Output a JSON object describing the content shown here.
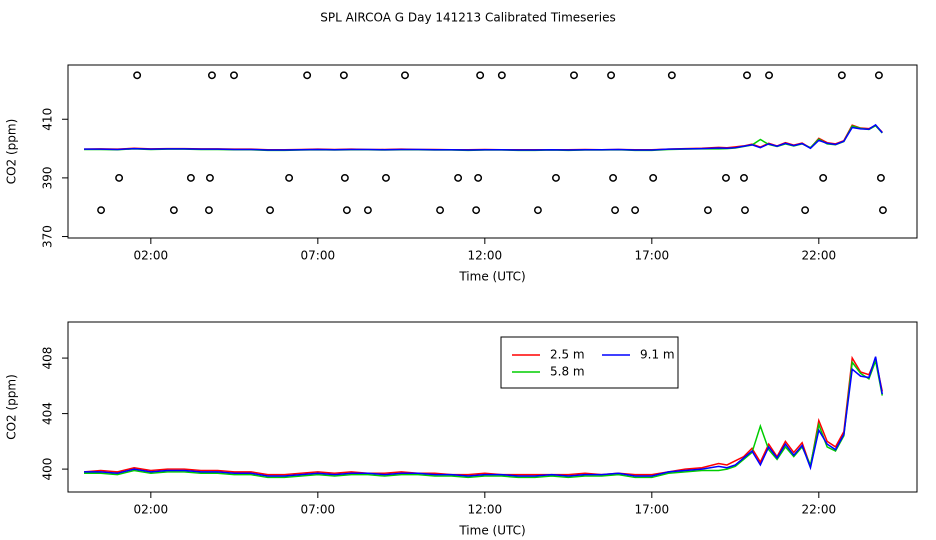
{
  "title": "SPL AIRCOA G  Day 141213  Calibrated Timeseries",
  "chart_data": [
    {
      "type": "line",
      "xlabel": "Time (UTC)",
      "ylabel": "CO2 (ppm)",
      "xlim": [
        -0.48,
        24.94
      ],
      "ylim": [
        369.5,
        428.5
      ],
      "xticks": [
        {
          "value": 2,
          "label": "02:00"
        },
        {
          "value": 7,
          "label": "07:00"
        },
        {
          "value": 12,
          "label": "12:00"
        },
        {
          "value": 17,
          "label": "17:00"
        },
        {
          "value": 22,
          "label": "22:00"
        }
      ],
      "yticks": [
        370,
        390,
        410
      ],
      "x": [
        0,
        0.5,
        1,
        1.5,
        2,
        2.5,
        3,
        3.5,
        4,
        4.5,
        5,
        5.5,
        6,
        6.5,
        7,
        7.5,
        8,
        8.5,
        9,
        9.5,
        10,
        10.5,
        11,
        11.5,
        12,
        12.5,
        13,
        13.5,
        14,
        14.5,
        15,
        15.5,
        16,
        16.5,
        17,
        17.5,
        18,
        18.5,
        19,
        19.25,
        19.5,
        19.75,
        20,
        20.25,
        20.5,
        20.75,
        21,
        21.25,
        21.5,
        21.75,
        22,
        22.25,
        22.5,
        22.75,
        23,
        23.25,
        23.5,
        23.7,
        23.9
      ],
      "series": [
        {
          "color": "#ff0000",
          "values": [
            399.8,
            399.9,
            399.8,
            400.1,
            399.9,
            400.0,
            400.0,
            399.9,
            399.9,
            399.8,
            399.8,
            399.6,
            399.6,
            399.7,
            399.8,
            399.7,
            399.8,
            399.7,
            399.7,
            399.8,
            399.7,
            399.7,
            399.6,
            399.6,
            399.7,
            399.6,
            399.6,
            399.6,
            399.6,
            399.6,
            399.7,
            399.6,
            399.7,
            399.6,
            399.6,
            399.8,
            400.0,
            400.1,
            400.4,
            400.3,
            400.6,
            400.9,
            401.5,
            400.5,
            401.8,
            400.9,
            402.0,
            401.2,
            401.9,
            400.2,
            403.5,
            402.0,
            401.6,
            402.7,
            408.0,
            407.0,
            406.8,
            407.9,
            405.6
          ]
        },
        {
          "color": "#00cd00",
          "values": [
            399.7,
            399.7,
            399.6,
            399.9,
            399.7,
            399.8,
            399.8,
            399.7,
            399.7,
            399.6,
            399.6,
            399.4,
            399.4,
            399.5,
            399.6,
            399.5,
            399.6,
            399.6,
            399.5,
            399.6,
            399.6,
            399.5,
            399.5,
            399.4,
            399.5,
            399.5,
            399.4,
            399.4,
            399.5,
            399.4,
            399.5,
            399.5,
            399.6,
            399.4,
            399.4,
            399.7,
            399.8,
            399.9,
            399.9,
            400.0,
            400.2,
            400.7,
            401.2,
            403.1,
            401.4,
            400.7,
            401.6,
            400.9,
            401.6,
            400.3,
            403.2,
            401.6,
            401.3,
            402.4,
            407.7,
            406.9,
            406.5,
            407.8,
            405.3
          ]
        },
        {
          "color": "#0000ff",
          "values": [
            399.8,
            399.8,
            399.7,
            400.0,
            399.8,
            399.9,
            399.9,
            399.8,
            399.8,
            399.7,
            399.7,
            399.5,
            399.5,
            399.6,
            399.7,
            399.6,
            399.7,
            399.7,
            399.6,
            399.7,
            399.7,
            399.6,
            399.6,
            399.5,
            399.6,
            399.6,
            399.5,
            399.5,
            399.6,
            399.5,
            399.6,
            399.6,
            399.7,
            399.5,
            399.5,
            399.8,
            399.9,
            400.0,
            400.2,
            400.1,
            400.3,
            400.8,
            401.3,
            400.3,
            401.6,
            400.8,
            401.8,
            401.0,
            401.7,
            400.1,
            402.8,
            401.8,
            401.4,
            402.5,
            407.2,
            406.7,
            406.6,
            408.1,
            405.4
          ]
        },
        {
          "marker": "circle",
          "color": "#000000",
          "x": [
            0.51,
            1.05,
            1.59,
            2.69,
            3.2,
            3.77,
            3.74,
            3.83,
            4.49,
            5.57,
            6.14,
            6.68,
            7.78,
            7.81,
            7.87,
            8.5,
            9.04,
            9.61,
            10.66,
            11.2,
            11.74,
            11.8,
            11.86,
            12.51,
            13.59,
            14.13,
            14.67,
            15.78,
            15.84,
            15.9,
            16.5,
            17.04,
            17.6,
            18.68,
            19.22,
            19.76,
            19.79,
            19.85,
            20.51,
            21.59,
            22.13,
            22.69,
            23.8,
            23.86,
            23.92
          ],
          "values": [
            379,
            390,
            425,
            379,
            390,
            390,
            379,
            425,
            425,
            379,
            390,
            425,
            425,
            390,
            379,
            379,
            390,
            425,
            379,
            390,
            379,
            390,
            425,
            425,
            379,
            390,
            425,
            425,
            390,
            379,
            379,
            390,
            425,
            379,
            390,
            390,
            379,
            425,
            425,
            379,
            390,
            425,
            425,
            390,
            379
          ]
        }
      ]
    },
    {
      "type": "line",
      "xlabel": "Time (UTC)",
      "ylabel": "CO2 (ppm)",
      "xlim": [
        -0.48,
        24.94
      ],
      "ylim": [
        398.35,
        410.6
      ],
      "xticks": [
        {
          "value": 2,
          "label": "02:00"
        },
        {
          "value": 7,
          "label": "07:00"
        },
        {
          "value": 12,
          "label": "12:00"
        },
        {
          "value": 17,
          "label": "17:00"
        },
        {
          "value": 22,
          "label": "22:00"
        }
      ],
      "yticks": [
        400,
        404,
        408
      ],
      "x": [
        0,
        0.5,
        1,
        1.5,
        2,
        2.5,
        3,
        3.5,
        4,
        4.5,
        5,
        5.5,
        6,
        6.5,
        7,
        7.5,
        8,
        8.5,
        9,
        9.5,
        10,
        10.5,
        11,
        11.5,
        12,
        12.5,
        13,
        13.5,
        14,
        14.5,
        15,
        15.5,
        16,
        16.5,
        17,
        17.5,
        18,
        18.5,
        19,
        19.25,
        19.5,
        19.75,
        20,
        20.25,
        20.5,
        20.75,
        21,
        21.25,
        21.5,
        21.75,
        22,
        22.25,
        22.5,
        22.75,
        23,
        23.25,
        23.5,
        23.7,
        23.9
      ],
      "series": [
        {
          "name": "2.5 m",
          "color": "#ff0000",
          "values": [
            399.8,
            399.9,
            399.8,
            400.1,
            399.9,
            400.0,
            400.0,
            399.9,
            399.9,
            399.8,
            399.8,
            399.6,
            399.6,
            399.7,
            399.8,
            399.7,
            399.8,
            399.7,
            399.7,
            399.8,
            399.7,
            399.7,
            399.6,
            399.6,
            399.7,
            399.6,
            399.6,
            399.6,
            399.6,
            399.6,
            399.7,
            399.6,
            399.7,
            399.6,
            399.6,
            399.8,
            400.0,
            400.1,
            400.4,
            400.3,
            400.6,
            400.9,
            401.5,
            400.5,
            401.8,
            400.9,
            402.0,
            401.2,
            401.9,
            400.2,
            403.5,
            402.0,
            401.6,
            402.7,
            408.0,
            407.0,
            406.8,
            407.9,
            405.6
          ]
        },
        {
          "name": "5.8 m",
          "color": "#00cd00",
          "values": [
            399.7,
            399.7,
            399.6,
            399.9,
            399.7,
            399.8,
            399.8,
            399.7,
            399.7,
            399.6,
            399.6,
            399.4,
            399.4,
            399.5,
            399.6,
            399.5,
            399.6,
            399.6,
            399.5,
            399.6,
            399.6,
            399.5,
            399.5,
            399.4,
            399.5,
            399.5,
            399.4,
            399.4,
            399.5,
            399.4,
            399.5,
            399.5,
            399.6,
            399.4,
            399.4,
            399.7,
            399.8,
            399.9,
            399.9,
            400.0,
            400.2,
            400.7,
            401.2,
            403.1,
            401.4,
            400.7,
            401.6,
            400.9,
            401.6,
            400.3,
            403.2,
            401.6,
            401.3,
            402.4,
            407.7,
            406.9,
            406.5,
            407.8,
            405.3
          ]
        },
        {
          "name": "9.1 m",
          "color": "#0000ff",
          "values": [
            399.8,
            399.8,
            399.7,
            400.0,
            399.8,
            399.9,
            399.9,
            399.8,
            399.8,
            399.7,
            399.7,
            399.5,
            399.5,
            399.6,
            399.7,
            399.6,
            399.7,
            399.7,
            399.6,
            399.7,
            399.7,
            399.6,
            399.6,
            399.5,
            399.6,
            399.6,
            399.5,
            399.5,
            399.6,
            399.5,
            399.6,
            399.6,
            399.7,
            399.5,
            399.5,
            399.8,
            399.9,
            400.0,
            400.2,
            400.1,
            400.3,
            400.8,
            401.3,
            400.3,
            401.6,
            400.8,
            401.8,
            401.0,
            401.7,
            400.1,
            402.8,
            401.8,
            401.4,
            402.5,
            407.2,
            406.7,
            406.6,
            408.1,
            405.4
          ]
        }
      ]
    }
  ]
}
